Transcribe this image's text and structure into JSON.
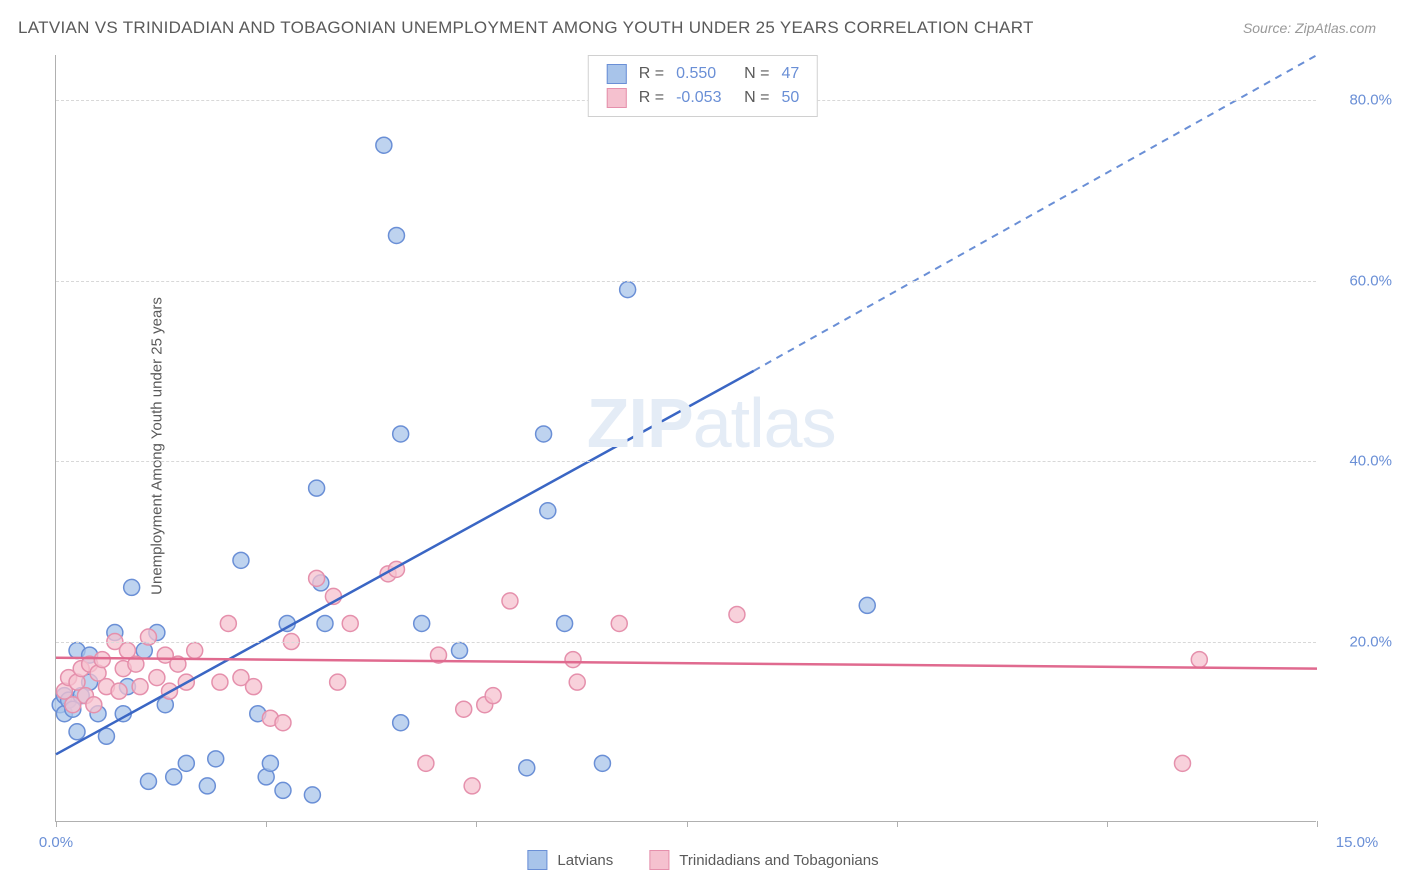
{
  "title": "LATVIAN VS TRINIDADIAN AND TOBAGONIAN UNEMPLOYMENT AMONG YOUTH UNDER 25 YEARS CORRELATION CHART",
  "source": "Source: ZipAtlas.com",
  "y_axis_label": "Unemployment Among Youth under 25 years",
  "watermark": "ZIPatlas",
  "chart": {
    "type": "scatter",
    "background_color": "#ffffff",
    "grid_color": "#d8d8d8",
    "axis_color": "#b0b0b0",
    "text_color": "#5a5a5a",
    "tick_label_color": "#6a8fd6",
    "xlim": [
      0,
      15
    ],
    "ylim": [
      0,
      85
    ],
    "x_ticks": [
      0,
      2.5,
      5,
      7.5,
      10,
      12.5,
      15
    ],
    "x_tick_labels": {
      "0": "0.0%",
      "15": "15.0%"
    },
    "y_ticks": [
      20,
      40,
      60,
      80
    ],
    "y_tick_labels": {
      "20": "20.0%",
      "40": "40.0%",
      "60": "60.0%",
      "80": "80.0%"
    },
    "series": [
      {
        "name": "Latvians",
        "marker_color_fill": "#a8c4ea",
        "marker_color_stroke": "#6a8fd6",
        "marker_opacity": 0.75,
        "marker_radius": 8,
        "r_value": "0.550",
        "n_value": "47",
        "trend_line": {
          "x1": 0,
          "y1": 7.5,
          "x2": 8.3,
          "y2": 50,
          "color": "#3a66c4",
          "width": 2.5
        },
        "trend_line_ext": {
          "x1": 8.3,
          "y1": 50,
          "x2": 15,
          "y2": 85,
          "color": "#6a8fd6",
          "width": 2,
          "dash": "7,6"
        },
        "points": [
          [
            0.05,
            13
          ],
          [
            0.1,
            12
          ],
          [
            0.1,
            14
          ],
          [
            0.15,
            13.5
          ],
          [
            0.2,
            12.5
          ],
          [
            0.25,
            10
          ],
          [
            0.25,
            19
          ],
          [
            0.3,
            14
          ],
          [
            0.4,
            15.5
          ],
          [
            0.4,
            18.5
          ],
          [
            0.5,
            12
          ],
          [
            0.6,
            9.5
          ],
          [
            0.7,
            21
          ],
          [
            0.8,
            12
          ],
          [
            0.85,
            15
          ],
          [
            0.9,
            26
          ],
          [
            1.05,
            19
          ],
          [
            1.1,
            4.5
          ],
          [
            1.2,
            21
          ],
          [
            1.3,
            13
          ],
          [
            1.4,
            5
          ],
          [
            1.55,
            6.5
          ],
          [
            1.8,
            4
          ],
          [
            1.9,
            7
          ],
          [
            2.2,
            29
          ],
          [
            2.4,
            12
          ],
          [
            2.5,
            5
          ],
          [
            2.55,
            6.5
          ],
          [
            2.7,
            3.5
          ],
          [
            2.75,
            22
          ],
          [
            3.05,
            3
          ],
          [
            3.1,
            37
          ],
          [
            3.15,
            26.5
          ],
          [
            3.2,
            22
          ],
          [
            3.9,
            75
          ],
          [
            4.1,
            43
          ],
          [
            4.05,
            65
          ],
          [
            4.1,
            11
          ],
          [
            4.35,
            22
          ],
          [
            4.8,
            19
          ],
          [
            5.6,
            6
          ],
          [
            5.8,
            43
          ],
          [
            5.85,
            34.5
          ],
          [
            6.05,
            22
          ],
          [
            6.5,
            6.5
          ],
          [
            6.8,
            59
          ],
          [
            9.65,
            24
          ]
        ]
      },
      {
        "name": "Trinidadians and Tobagonians",
        "marker_color_fill": "#f5c1cf",
        "marker_color_stroke": "#e590ac",
        "marker_opacity": 0.75,
        "marker_radius": 8,
        "r_value": "-0.053",
        "n_value": "50",
        "trend_line": {
          "x1": 0,
          "y1": 18.2,
          "x2": 15,
          "y2": 17,
          "color": "#e06a8f",
          "width": 2.5
        },
        "points": [
          [
            0.1,
            14.5
          ],
          [
            0.15,
            16
          ],
          [
            0.2,
            13
          ],
          [
            0.25,
            15.5
          ],
          [
            0.3,
            17
          ],
          [
            0.35,
            14
          ],
          [
            0.4,
            17.5
          ],
          [
            0.45,
            13
          ],
          [
            0.5,
            16.5
          ],
          [
            0.55,
            18
          ],
          [
            0.6,
            15
          ],
          [
            0.7,
            20
          ],
          [
            0.75,
            14.5
          ],
          [
            0.8,
            17
          ],
          [
            0.85,
            19
          ],
          [
            0.95,
            17.5
          ],
          [
            1.0,
            15
          ],
          [
            1.1,
            20.5
          ],
          [
            1.2,
            16
          ],
          [
            1.3,
            18.5
          ],
          [
            1.35,
            14.5
          ],
          [
            1.45,
            17.5
          ],
          [
            1.55,
            15.5
          ],
          [
            1.65,
            19
          ],
          [
            1.95,
            15.5
          ],
          [
            2.05,
            22
          ],
          [
            2.2,
            16
          ],
          [
            2.35,
            15
          ],
          [
            2.55,
            11.5
          ],
          [
            2.7,
            11
          ],
          [
            2.8,
            20
          ],
          [
            3.1,
            27
          ],
          [
            3.3,
            25
          ],
          [
            3.35,
            15.5
          ],
          [
            3.5,
            22
          ],
          [
            3.95,
            27.5
          ],
          [
            4.05,
            28
          ],
          [
            4.4,
            6.5
          ],
          [
            4.55,
            18.5
          ],
          [
            4.85,
            12.5
          ],
          [
            4.95,
            4
          ],
          [
            5.1,
            13
          ],
          [
            5.2,
            14
          ],
          [
            5.4,
            24.5
          ],
          [
            6.15,
            18
          ],
          [
            6.2,
            15.5
          ],
          [
            6.7,
            22
          ],
          [
            8.1,
            23
          ],
          [
            13.6,
            18
          ],
          [
            13.4,
            6.5
          ]
        ]
      }
    ],
    "bottom_legend": [
      {
        "label": "Latvians",
        "fill": "#a8c4ea",
        "stroke": "#6a8fd6"
      },
      {
        "label": "Trinidadians and Tobagonians",
        "fill": "#f5c1cf",
        "stroke": "#e590ac"
      }
    ]
  }
}
